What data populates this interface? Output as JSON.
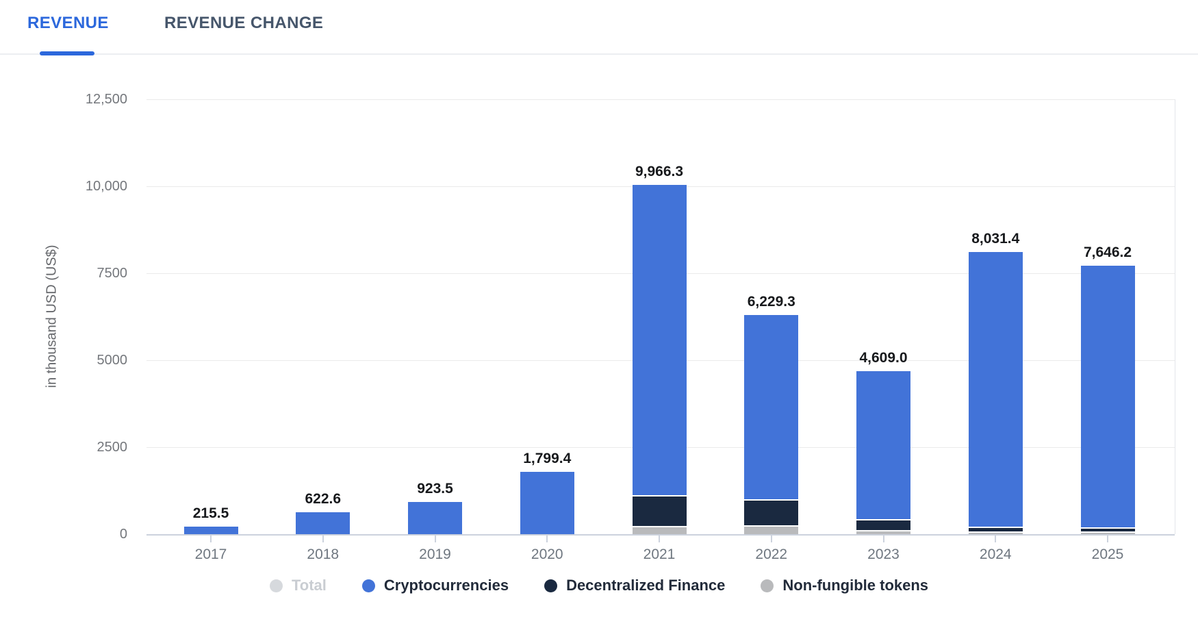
{
  "tabs": [
    {
      "label": "REVENUE",
      "active": true
    },
    {
      "label": "REVENUE CHANGE",
      "active": false
    }
  ],
  "colors": {
    "tab_active": "#2c68dc",
    "tab_inactive": "#46566b",
    "bar_blue": "#4273d8",
    "bar_navy": "#1a2940",
    "bar_grey": "#b9babc",
    "legend_total_dot": "#d6d9dd",
    "gridline": "#eaeaea",
    "axis_line": "#ccd2dd"
  },
  "chart_data": {
    "type": "bar",
    "stacked": true,
    "y_axis_title": "in thousand USD (US$)",
    "categories": [
      "2017",
      "2018",
      "2019",
      "2020",
      "2021",
      "2022",
      "2023",
      "2024",
      "2025"
    ],
    "series": [
      {
        "name": "Cryptocurrencies",
        "color": "#4273d8",
        "values": [
          215.5,
          622.6,
          923.5,
          1799.4,
          8916.3,
          5294.3,
          4249.0,
          7886.4,
          7526.2
        ]
      },
      {
        "name": "Decentralized Finance",
        "color": "#1a2940",
        "values": [
          0,
          0,
          0,
          0,
          850,
          715,
          280,
          100,
          80
        ]
      },
      {
        "name": "Non-fungible tokens",
        "color": "#b9babc",
        "values": [
          0,
          0,
          0,
          0,
          200,
          220,
          80,
          45,
          40
        ]
      }
    ],
    "totals": [
      215.5,
      622.6,
      923.5,
      1799.4,
      9966.3,
      6229.3,
      4609.0,
      8031.4,
      7646.2
    ],
    "total_labels": [
      "215.5",
      "622.6",
      "923.5",
      "1,799.4",
      "9,966.3",
      "6,229.3",
      "4,609.0",
      "8,031.4",
      "7,646.2"
    ],
    "y_ticks": [
      {
        "value": 12500,
        "label": "12,500"
      },
      {
        "value": 10000,
        "label": "10,000"
      },
      {
        "value": 7500,
        "label": "7500"
      },
      {
        "value": 5000,
        "label": "5000"
      },
      {
        "value": 2500,
        "label": "2500"
      },
      {
        "value": 0,
        "label": "0"
      }
    ],
    "ylim": [
      0,
      12500
    ],
    "grid": "horizontal",
    "legend_position": "bottom",
    "legend": [
      {
        "label": "Total",
        "color": "#d6d9dd",
        "disabled": true
      },
      {
        "label": "Cryptocurrencies",
        "color": "#4273d8",
        "disabled": false
      },
      {
        "label": "Decentralized Finance",
        "color": "#1a2940",
        "disabled": false
      },
      {
        "label": "Non-fungible tokens",
        "color": "#b9babc",
        "disabled": false
      }
    ]
  }
}
